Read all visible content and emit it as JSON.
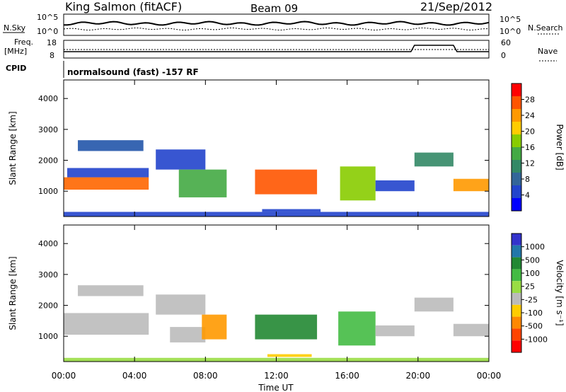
{
  "header": {
    "station": "King Salmon (fitACF)",
    "beam": "Beam 09",
    "date": "21/Sep/2012"
  },
  "top_panels": {
    "nsky_label": "N.Sky",
    "nsky_ticks": [
      "10^5",
      "10^0"
    ],
    "nsearch_label": "N.Search",
    "freq_label_1": "Freq.",
    "freq_label_2": "[MHz]",
    "freq_ticks": [
      "18",
      "8"
    ],
    "nave_label": "Nave",
    "nave_ticks": [
      "60",
      "0"
    ],
    "cpid_label": "CPID",
    "cpid_value": "normalsound (fast) -157 RF"
  },
  "colorbars": {
    "power": {
      "label": "Power [dB]",
      "ticks": [
        "28",
        "24",
        "20",
        "16",
        "12",
        "8",
        "4"
      ],
      "colors": [
        "#ff0000",
        "#ff5500",
        "#ff9900",
        "#ffcc00",
        "#88cc00",
        "#44aa44",
        "#338866",
        "#336699",
        "#2244cc",
        "#0000ff"
      ]
    },
    "velocity": {
      "label": "Velocity [m s⁻¹]",
      "ticks": [
        "1000",
        "500",
        "100",
        "25",
        "-25",
        "-100",
        "-500",
        "-1000"
      ],
      "colors": [
        "#3333cc",
        "#2277aa",
        "#228833",
        "#44bb44",
        "#99dd44",
        "#bbbbbb",
        "#ffcc00",
        "#ff8800",
        "#ff4400",
        "#ff0000"
      ]
    }
  },
  "chart_data": [
    {
      "type": "heatmap",
      "title": "Power",
      "ylabel": "Slant Range [km]",
      "yticks": [
        "4000",
        "3000",
        "2000",
        "1000"
      ],
      "xticks": [
        "00:00",
        "04:00",
        "08:00",
        "12:00",
        "16:00",
        "20:00",
        "00:00"
      ],
      "xlabel": "Time UT",
      "ylim": [
        180,
        4600
      ],
      "xlim_hours": [
        0,
        24
      ],
      "regions": [
        {
          "t0": 0.0,
          "t1": 4.8,
          "r0": 1050,
          "r1": 1450,
          "color": "#ff6600"
        },
        {
          "t0": 0.2,
          "t1": 4.8,
          "r0": 1450,
          "r1": 1750,
          "color": "#2244cc"
        },
        {
          "t0": 0.8,
          "t1": 4.5,
          "r0": 2300,
          "r1": 2650,
          "color": "#2255aa"
        },
        {
          "t0": 5.2,
          "t1": 8.0,
          "r0": 1700,
          "r1": 2350,
          "color": "#2244cc"
        },
        {
          "t0": 6.5,
          "t1": 9.2,
          "r0": 800,
          "r1": 1700,
          "color": "#44aa44"
        },
        {
          "t0": 10.8,
          "t1": 14.3,
          "r0": 900,
          "r1": 1700,
          "color": "#ff5500"
        },
        {
          "t0": 15.6,
          "t1": 17.6,
          "r0": 700,
          "r1": 1800,
          "color": "#88cc00"
        },
        {
          "t0": 17.6,
          "t1": 19.8,
          "r0": 1000,
          "r1": 1350,
          "color": "#2244cc"
        },
        {
          "t0": 19.8,
          "t1": 22.0,
          "r0": 1800,
          "r1": 2250,
          "color": "#338866"
        },
        {
          "t0": 22.0,
          "t1": 24.0,
          "r0": 1000,
          "r1": 1400,
          "color": "#ff9900"
        },
        {
          "t0": 11.2,
          "t1": 14.5,
          "r0": 330,
          "r1": 420,
          "color": "#2244cc"
        },
        {
          "t0": 0.0,
          "t1": 24.0,
          "r0": 180,
          "r1": 330,
          "color": "#2244cc"
        }
      ]
    },
    {
      "type": "heatmap",
      "title": "Velocity",
      "ylabel": "Slant Range [km]",
      "yticks": [
        "4000",
        "3000",
        "2000",
        "1000"
      ],
      "xticks": [
        "00:00",
        "04:00",
        "08:00",
        "12:00",
        "16:00",
        "20:00",
        "00:00"
      ],
      "xlabel": "Time UT",
      "ylim": [
        180,
        4600
      ],
      "xlim_hours": [
        0,
        24
      ],
      "regions": [
        {
          "t0": 0.0,
          "t1": 4.8,
          "r0": 1050,
          "r1": 1750,
          "color": "#bbbbbb"
        },
        {
          "t0": 0.8,
          "t1": 4.5,
          "r0": 2300,
          "r1": 2650,
          "color": "#bbbbbb"
        },
        {
          "t0": 5.2,
          "t1": 8.0,
          "r0": 1700,
          "r1": 2350,
          "color": "#bbbbbb"
        },
        {
          "t0": 6.0,
          "t1": 8.0,
          "r0": 800,
          "r1": 1300,
          "color": "#bbbbbb"
        },
        {
          "t0": 7.8,
          "t1": 9.2,
          "r0": 900,
          "r1": 1700,
          "color": "#ff9900"
        },
        {
          "t0": 10.8,
          "t1": 14.3,
          "r0": 900,
          "r1": 1700,
          "color": "#228833"
        },
        {
          "t0": 15.5,
          "t1": 17.6,
          "r0": 700,
          "r1": 1800,
          "color": "#44bb44"
        },
        {
          "t0": 17.6,
          "t1": 19.8,
          "r0": 1000,
          "r1": 1350,
          "color": "#bbbbbb"
        },
        {
          "t0": 19.8,
          "t1": 22.0,
          "r0": 1800,
          "r1": 2250,
          "color": "#bbbbbb"
        },
        {
          "t0": 22.0,
          "t1": 24.0,
          "r0": 1000,
          "r1": 1400,
          "color": "#bbbbbb"
        },
        {
          "t0": 11.5,
          "t1": 14.0,
          "r0": 330,
          "r1": 420,
          "color": "#ffcc00"
        },
        {
          "t0": 0.0,
          "t1": 24.0,
          "r0": 180,
          "r1": 300,
          "color": "#99dd44"
        }
      ]
    }
  ]
}
